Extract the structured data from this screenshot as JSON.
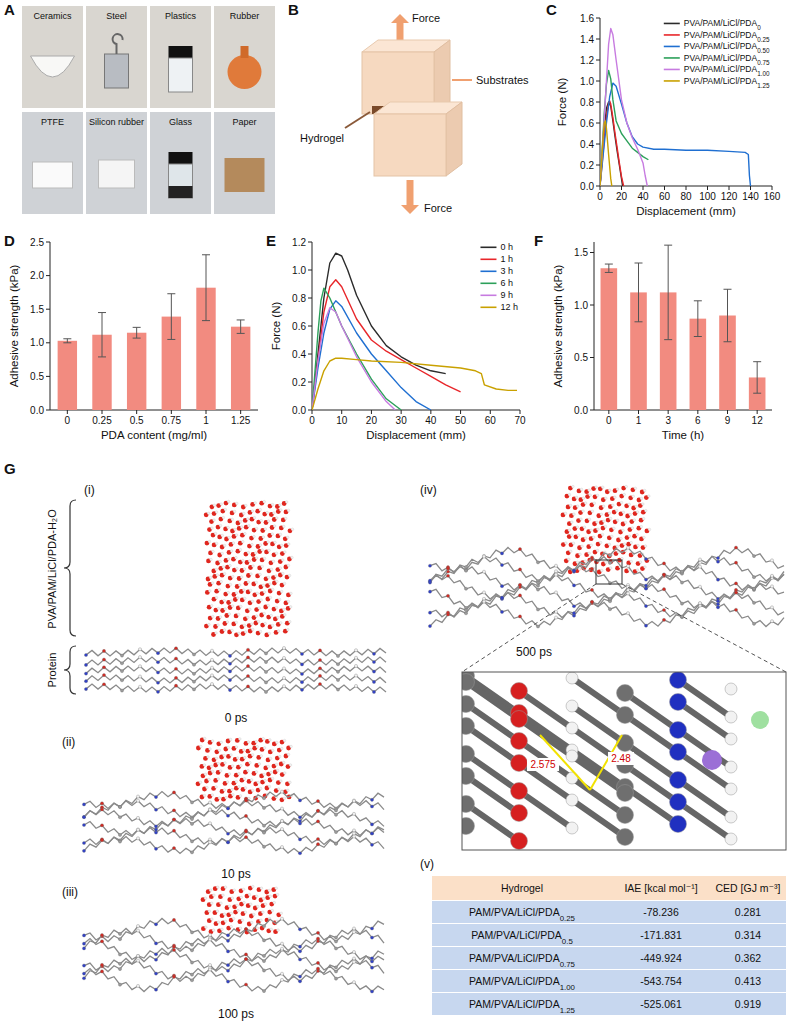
{
  "photos": {
    "panel": "A",
    "items": [
      "Ceramics",
      "Steel",
      "Plastics",
      "Rubber",
      "PTFE",
      "Silicon rubber",
      "Glass",
      "Paper"
    ]
  },
  "diagram": {
    "panel": "B",
    "labels": [
      "Force",
      "Substrates",
      "Hydrogel",
      "Force"
    ]
  },
  "chart_data": [
    {
      "panel": "C",
      "type": "line",
      "x_label": "Displacement (mm)",
      "y_label": "Force (N)",
      "xlim": [
        0,
        160
      ],
      "xticks": [
        0,
        20,
        40,
        60,
        80,
        100,
        120,
        140,
        160
      ],
      "ylim": [
        0,
        1.6
      ],
      "yticks": [
        {
          "value": 0,
          "label": "0.0"
        },
        0.2,
        0.4,
        0.6,
        0.8,
        {
          "value": 1,
          "label": "1.0"
        },
        1.2,
        1.4,
        1.6
      ],
      "legend": "upper right",
      "series": [
        {
          "name": "PVA/PAM/LiCl/PDA0",
          "color": "#2b2b2b",
          "x": [
            0,
            2,
            4,
            6,
            8,
            10,
            12,
            14,
            16,
            18,
            20,
            21
          ],
          "values": [
            0,
            0.28,
            0.55,
            0.74,
            0.8,
            0.76,
            0.62,
            0.47,
            0.33,
            0.2,
            0.07,
            0
          ]
        },
        {
          "name": "PVA/PAM/LiCl/PDA0.25",
          "color": "#e8262a",
          "x": [
            0,
            2,
            4,
            6,
            8,
            9,
            10,
            12,
            14,
            16,
            18,
            20,
            22
          ],
          "values": [
            0,
            0.22,
            0.45,
            0.66,
            0.79,
            0.81,
            0.78,
            0.65,
            0.5,
            0.36,
            0.22,
            0.09,
            0
          ]
        },
        {
          "name": "PVA/PAM/LiCl/PDA0.50",
          "color": "#1f6fd1",
          "x": [
            0,
            3,
            6,
            9,
            12,
            15,
            20,
            25,
            30,
            35,
            40,
            50,
            60,
            80,
            100,
            120,
            135,
            138,
            139,
            140
          ],
          "values": [
            0,
            0.3,
            0.6,
            0.85,
            0.98,
            0.95,
            0.78,
            0.6,
            0.47,
            0.4,
            0.37,
            0.35,
            0.35,
            0.34,
            0.34,
            0.33,
            0.32,
            0.3,
            0.1,
            0
          ]
        },
        {
          "name": "PVA/PAM/LiCl/PDA0.75",
          "color": "#2ca05a",
          "x": [
            0,
            2,
            4,
            6,
            8,
            10,
            12,
            15,
            20,
            25,
            30,
            35,
            40,
            45
          ],
          "values": [
            0,
            0.35,
            0.7,
            0.97,
            1.1,
            1.02,
            0.82,
            0.62,
            0.5,
            0.43,
            0.36,
            0.32,
            0.28,
            0.25
          ]
        },
        {
          "name": "PVA/PAM/LiCl/PDA1.00",
          "color": "#c77be0",
          "x": [
            0,
            2,
            4,
            6,
            8,
            10,
            12,
            15,
            20,
            25,
            30,
            35,
            40,
            42,
            44
          ],
          "values": [
            0,
            0.3,
            0.65,
            1.0,
            1.35,
            1.5,
            1.44,
            1.2,
            0.82,
            0.6,
            0.46,
            0.35,
            0.22,
            0.1,
            0
          ]
        },
        {
          "name": "PVA/PAM/LiCl/PDA1.25",
          "color": "#c9a100",
          "x": [
            0,
            1,
            2,
            3,
            4,
            5,
            6,
            8,
            10,
            11
          ],
          "values": [
            0,
            0.15,
            0.32,
            0.48,
            0.6,
            0.62,
            0.55,
            0.3,
            0.07,
            0
          ]
        }
      ]
    },
    {
      "panel": "D",
      "type": "bar",
      "x_label": "PDA content (mg/ml)",
      "y_label": "Adhesive strength (kPa)",
      "categories": [
        "0",
        "0.25",
        "0.5",
        "0.75",
        "1",
        "1.25"
      ],
      "values": [
        1.03,
        1.12,
        1.15,
        1.39,
        1.82,
        1.24
      ],
      "errors": [
        0.03,
        0.33,
        0.08,
        0.34,
        0.49,
        0.1
      ],
      "color": "#f28b80",
      "ylim": [
        0,
        2.5
      ],
      "yticks": [
        {
          "value": 0,
          "label": "0.0"
        },
        0.5,
        {
          "value": 1,
          "label": "1.0"
        },
        1.5,
        {
          "value": 2,
          "label": "2.0"
        },
        2.5
      ]
    },
    {
      "panel": "E",
      "type": "line",
      "x_label": "Displacement (mm)",
      "y_label": "Force (N)",
      "xlim": [
        0,
        70
      ],
      "xticks": [
        0,
        10,
        20,
        30,
        40,
        50,
        60,
        70
      ],
      "ylim": [
        0,
        1.2
      ],
      "yticks": [
        {
          "value": 0,
          "label": "0.0"
        },
        0.2,
        0.4,
        0.6,
        0.8,
        {
          "value": 1,
          "label": "1.0"
        },
        1.2
      ],
      "legend": "upper right",
      "series": [
        {
          "name": "0 h",
          "color": "#2b2b2b",
          "x": [
            0,
            2,
            4,
            6,
            8,
            10,
            12,
            15,
            20,
            25,
            30,
            35,
            40,
            45
          ],
          "values": [
            0,
            0.4,
            0.8,
            1.05,
            1.12,
            1.1,
            1.0,
            0.82,
            0.6,
            0.46,
            0.38,
            0.32,
            0.28,
            0.26
          ]
        },
        {
          "name": "1 h",
          "color": "#e8262a",
          "x": [
            0,
            2,
            4,
            6,
            8,
            10,
            15,
            20,
            25,
            30,
            35,
            40,
            45,
            50
          ],
          "values": [
            0,
            0.35,
            0.7,
            0.88,
            0.93,
            0.88,
            0.65,
            0.5,
            0.42,
            0.36,
            0.3,
            0.24,
            0.18,
            0.13
          ]
        },
        {
          "name": "3 h",
          "color": "#1f6fd1",
          "x": [
            0,
            2,
            4,
            6,
            8,
            10,
            15,
            20,
            25,
            30,
            35,
            40
          ],
          "values": [
            0,
            0.3,
            0.55,
            0.72,
            0.78,
            0.74,
            0.55,
            0.4,
            0.28,
            0.16,
            0.06,
            0
          ]
        },
        {
          "name": "6 h",
          "color": "#2ca05a",
          "x": [
            0,
            2,
            3,
            4,
            6,
            8,
            10,
            15,
            20,
            25,
            30
          ],
          "values": [
            0,
            0.55,
            0.78,
            0.87,
            0.8,
            0.7,
            0.6,
            0.4,
            0.22,
            0.08,
            0
          ]
        },
        {
          "name": "9 h",
          "color": "#c77be0",
          "x": [
            0,
            2,
            4,
            6,
            8,
            10,
            15,
            20,
            25,
            28
          ],
          "values": [
            0,
            0.35,
            0.62,
            0.73,
            0.7,
            0.6,
            0.38,
            0.2,
            0.06,
            0
          ]
        },
        {
          "name": "12 h",
          "color": "#c9a100",
          "x": [
            0,
            2,
            4,
            6,
            8,
            10,
            15,
            20,
            30,
            40,
            50,
            55,
            57,
            58,
            62,
            66,
            69
          ],
          "values": [
            0,
            0.15,
            0.28,
            0.35,
            0.37,
            0.37,
            0.36,
            0.35,
            0.34,
            0.32,
            0.3,
            0.28,
            0.26,
            0.18,
            0.15,
            0.14,
            0.14
          ]
        }
      ]
    },
    {
      "panel": "F",
      "type": "bar",
      "x_label": "Time (h)",
      "y_label": "Adhesive strength (kPa)",
      "categories": [
        "0",
        "1",
        "3",
        "6",
        "9",
        "12"
      ],
      "values": [
        1.35,
        1.12,
        1.12,
        0.87,
        0.9,
        0.31
      ],
      "errors": [
        0.04,
        0.28,
        0.45,
        0.17,
        0.25,
        0.15
      ],
      "color": "#f28b80",
      "ylim": [
        0,
        1.6
      ],
      "yticks": [
        {
          "value": 0,
          "label": "0.0"
        },
        0.5,
        {
          "value": 1,
          "label": "1.0"
        },
        1.5
      ]
    }
  ],
  "simulation": {
    "panel": "G",
    "brace_labels": [
      "Protein",
      "PVA/PAM/LiCl/PDA-H₂O"
    ],
    "stages": [
      {
        "label": "(i)",
        "time": "0 ps"
      },
      {
        "label": "(ii)",
        "time": "10 ps"
      },
      {
        "label": "(iii)",
        "time": "100 ps"
      },
      {
        "label": "(iv)",
        "time": "500 ps"
      }
    ],
    "distances": [
      "2.575",
      "2.48"
    ],
    "table": {
      "label": "(v)",
      "header": [
        "Hydrogel",
        "IAE [kcal mol⁻¹]",
        "CED [GJ m⁻³]"
      ],
      "rows": [
        [
          "PAM/PVA/LiCl/PDA0.25",
          -78.236,
          0.281
        ],
        [
          "PAM/PVA/LiCl/PDA0.5",
          -171.831,
          0.314
        ],
        [
          "PAM/PVA/LiCl/PDA0.75",
          -449.924,
          0.362
        ],
        [
          "PAM/PVA/LiCl/PDA1.00",
          -543.754,
          0.413
        ],
        [
          "PAM/PVA/LiCl/PDA1.25",
          -525.061,
          0.919
        ]
      ]
    }
  }
}
